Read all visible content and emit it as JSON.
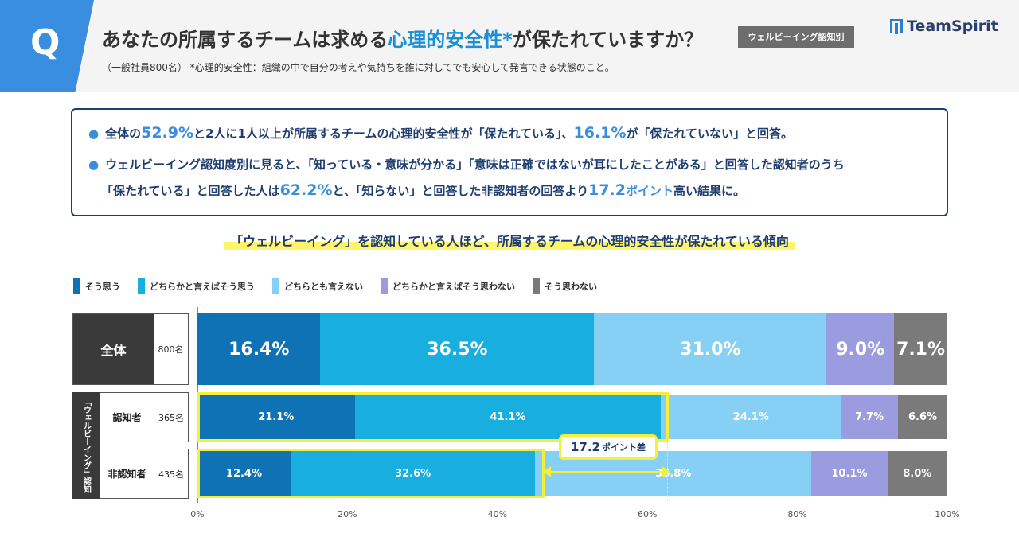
{
  "header": {
    "q": "Q",
    "title_a": "あなたの所属するチームは求める",
    "title_hl": "心理的安全性*",
    "title_b": "が保たれていますか？",
    "badge": "ウェルビーイング認知別",
    "subtitle": "（一般社員800名） *心理的安全性：組織の中で自分の考えや気持ちを誰に対してでも安心して発言できる状態のこと。",
    "logo": "TeamSpirit"
  },
  "summary": {
    "line1_a": "全体の",
    "line1_v1": "52.9%",
    "line1_b": "と2人に1人以上が所属するチームの心理的安全性が「保たれている」、",
    "line1_v2": "16.1%",
    "line1_c": "が「保たれていない」と回答。",
    "line2": "ウェルビーイング認知度別に見ると、「知っている・意味が分かる」「意味は正確ではないが耳にしたことがある」と回答した認知者のうち",
    "line3_a": "「保たれている」と回答した人は",
    "line3_v1": "62.2%",
    "line3_b": "と、「知らない」と回答した非認知者の回答より",
    "line3_v2": "17.2",
    "line3_c": "ポイント",
    "line3_d": "高い結果に。"
  },
  "trend": "「ウェルビーイング」を認知している人ほど、所属するチームの心理的安全性が保たれている傾向",
  "labels": {
    "all": "全体",
    "all_count": "800名",
    "group": "「ウェルビーイング」認知",
    "aware": "認知者",
    "aware_count": "365名",
    "unaware": "非認知者",
    "unaware_count": "435名"
  },
  "callout": {
    "value": "17.2",
    "unit": "ポイント差"
  },
  "chart_data": {
    "type": "bar",
    "orientation": "horizontal-stacked-100",
    "categories": [
      "全体",
      "認知者",
      "非認知者"
    ],
    "series": [
      {
        "name": "そう思う",
        "color": "#0e72b4",
        "values": [
          16.4,
          21.1,
          12.4
        ]
      },
      {
        "name": "どちらかと言えばそう思う",
        "color": "#18aee0",
        "values": [
          36.5,
          41.1,
          32.6
        ]
      },
      {
        "name": "どちらとも言えない",
        "color": "#86cff5",
        "values": [
          31.0,
          24.1,
          36.8
        ]
      },
      {
        "name": "どちらかと言えばそう思わない",
        "color": "#9b9be0",
        "values": [
          9.0,
          7.7,
          10.1
        ]
      },
      {
        "name": "そう思わない",
        "color": "#7a7a7a",
        "values": [
          7.1,
          6.6,
          8.0
        ]
      }
    ],
    "xticks": [
      "0%",
      "20%",
      "40%",
      "60%",
      "80%",
      "100%"
    ],
    "xlim": [
      0,
      100
    ]
  }
}
